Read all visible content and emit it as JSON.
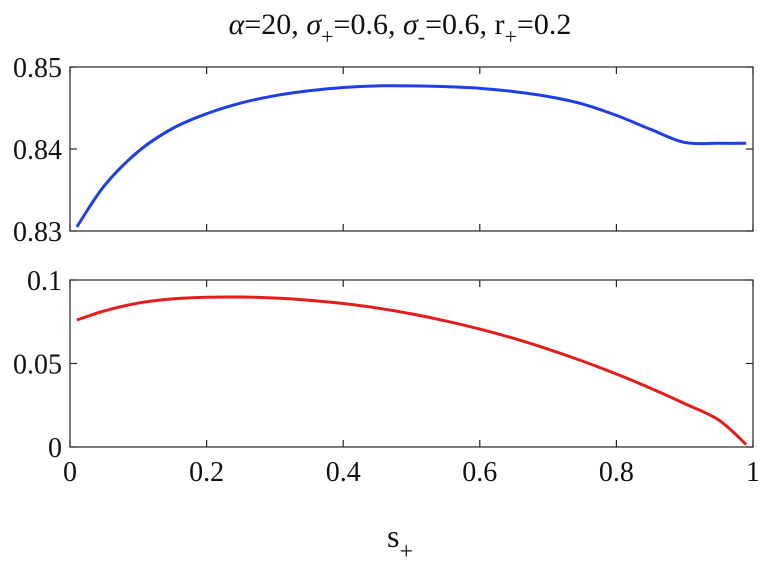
{
  "title": {
    "alpha_sym": "α",
    "alpha_rest": "=20, ",
    "sigma_plus_sym": "σ",
    "sigma_plus_sub": "+",
    "sigma_plus_rest": "=0.6, ",
    "sigma_minus_sym": "σ",
    "sigma_minus_sub": "-",
    "sigma_minus_rest": "=0.6, ",
    "r_sym": "r",
    "r_sub": "+",
    "r_rest": "=0.2"
  },
  "xlabel": {
    "main": "s",
    "sub": "+"
  },
  "colors": {
    "top_line": "#1f3fe6",
    "bottom_line": "#e61c1c",
    "axis": "#262626"
  },
  "chart_data": [
    {
      "type": "line",
      "title": "α=20, σ+=0.6, σ-=0.6, r+=0.2",
      "xlabel": "",
      "ylabel": "",
      "xlim": [
        0,
        1
      ],
      "ylim": [
        0.83,
        0.85
      ],
      "x_ticks": [
        0,
        0.2,
        0.4,
        0.6,
        0.8,
        1
      ],
      "y_ticks": [
        0.83,
        0.84,
        0.85
      ],
      "y_tick_labels": [
        "0.83",
        "0.84",
        "0.85"
      ],
      "grid": false,
      "series": [
        {
          "color": "#1f3fe6",
          "x": [
            0.01,
            0.05,
            0.1,
            0.15,
            0.2,
            0.25,
            0.3,
            0.35,
            0.4,
            0.45,
            0.5,
            0.55,
            0.6,
            0.65,
            0.7,
            0.75,
            0.8,
            0.85,
            0.9,
            0.95,
            0.99
          ],
          "y": [
            0.8305,
            0.8355,
            0.8397,
            0.8425,
            0.8443,
            0.8456,
            0.8465,
            0.8471,
            0.8475,
            0.8477,
            0.8477,
            0.8476,
            0.8474,
            0.847,
            0.8464,
            0.8455,
            0.8441,
            0.8424,
            0.8408,
            0.8407,
            0.8407
          ]
        }
      ]
    },
    {
      "type": "line",
      "xlabel": "s+",
      "ylabel": "",
      "xlim": [
        0,
        1
      ],
      "ylim": [
        0,
        0.1
      ],
      "x_ticks": [
        0,
        0.2,
        0.4,
        0.6,
        0.8,
        1
      ],
      "x_tick_labels": [
        "0",
        "0.2",
        "0.4",
        "0.6",
        "0.8",
        "1"
      ],
      "y_ticks": [
        0,
        0.05,
        0.1
      ],
      "y_tick_labels": [
        "0",
        "0.05",
        "0.1"
      ],
      "grid": false,
      "series": [
        {
          "color": "#e61c1c",
          "x": [
            0.01,
            0.05,
            0.1,
            0.15,
            0.2,
            0.25,
            0.3,
            0.35,
            0.4,
            0.45,
            0.5,
            0.55,
            0.6,
            0.65,
            0.7,
            0.75,
            0.8,
            0.85,
            0.9,
            0.95,
            0.99
          ],
          "y": [
            0.076,
            0.0815,
            0.0862,
            0.0887,
            0.0897,
            0.0898,
            0.0892,
            0.0879,
            0.0859,
            0.0832,
            0.0797,
            0.0755,
            0.0706,
            0.065,
            0.0586,
            0.0515,
            0.0437,
            0.0352,
            0.026,
            0.0161,
            0.0015
          ]
        }
      ]
    }
  ]
}
